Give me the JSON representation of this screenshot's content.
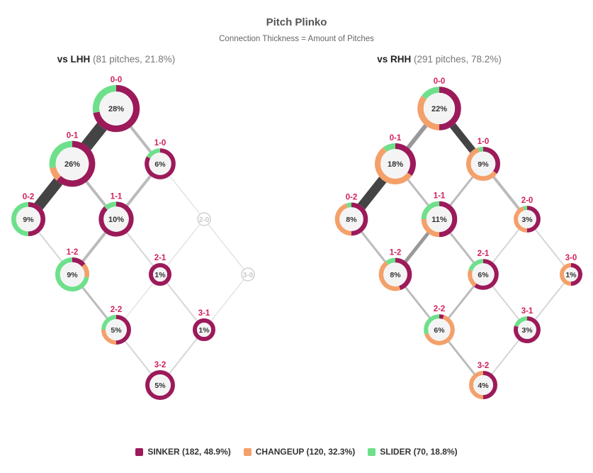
{
  "colors": {
    "sinker": "#9c1a5a",
    "changeup": "#f4a06a",
    "slider": "#6ee08b"
  },
  "chart_data": {
    "type": "count-tree-donut",
    "title": "Pitch Plinko",
    "subtitle": "Connection Thickness = Amount of Pitches",
    "pitch_types": [
      "SINKER",
      "CHANGEUP",
      "SLIDER"
    ],
    "panels": [
      {
        "label": "vs LHH",
        "meta": "(81 pitches, 21.8%)",
        "counts": {
          "0-0": {
            "pct": "28%",
            "mix": [
              0.72,
              0,
              0.28
            ]
          },
          "0-1": {
            "pct": "26%",
            "mix": [
              0.62,
              0.1,
              0.28
            ]
          },
          "1-0": {
            "pct": "6%",
            "mix": [
              0.83,
              0,
              0.17
            ]
          },
          "0-2": {
            "pct": "9%",
            "mix": [
              0.5,
              0,
              0.5
            ]
          },
          "1-1": {
            "pct": "10%",
            "mix": [
              0.88,
              0,
              0.12
            ]
          },
          "2-0": {
            "pct": "",
            "mix": [
              0,
              0,
              0
            ]
          },
          "1-2": {
            "pct": "9%",
            "mix": [
              0.14,
              0.14,
              0.72
            ]
          },
          "2-1": {
            "pct": "1%",
            "mix": [
              1,
              0,
              0
            ]
          },
          "3-0": {
            "pct": "",
            "mix": [
              0,
              0,
              0
            ]
          },
          "2-2": {
            "pct": "5%",
            "mix": [
              0.5,
              0.25,
              0.25
            ]
          },
          "3-1": {
            "pct": "1%",
            "mix": [
              1,
              0,
              0
            ]
          },
          "3-2": {
            "pct": "5%",
            "mix": [
              1,
              0,
              0
            ]
          }
        },
        "edges": [
          {
            "from": "0-0",
            "to": "0-1",
            "w": 17
          },
          {
            "from": "0-0",
            "to": "1-0",
            "w": 4
          },
          {
            "from": "0-1",
            "to": "0-2",
            "w": 15
          },
          {
            "from": "0-1",
            "to": "1-1",
            "w": 4
          },
          {
            "from": "1-0",
            "to": "1-1",
            "w": 4
          },
          {
            "from": "1-0",
            "to": "2-0",
            "w": 1
          },
          {
            "from": "0-2",
            "to": "1-2",
            "w": 2
          },
          {
            "from": "1-1",
            "to": "1-2",
            "w": 4
          },
          {
            "from": "1-1",
            "to": "2-1",
            "w": 2
          },
          {
            "from": "2-0",
            "to": "2-1",
            "w": 1
          },
          {
            "from": "2-0",
            "to": "3-0",
            "w": 1
          },
          {
            "from": "1-2",
            "to": "2-2",
            "w": 3
          },
          {
            "from": "2-1",
            "to": "2-2",
            "w": 1
          },
          {
            "from": "2-1",
            "to": "3-1",
            "w": 2
          },
          {
            "from": "3-0",
            "to": "3-1",
            "w": 1
          },
          {
            "from": "2-2",
            "to": "3-2",
            "w": 2
          },
          {
            "from": "3-1",
            "to": "3-2",
            "w": 2
          }
        ]
      },
      {
        "label": "vs RHH",
        "meta": "(291 pitches, 78.2%)",
        "counts": {
          "0-0": {
            "pct": "22%",
            "mix": [
              0.5,
              0.35,
              0.15
            ]
          },
          "0-1": {
            "pct": "18%",
            "mix": [
              0.35,
              0.55,
              0.1
            ]
          },
          "1-0": {
            "pct": "9%",
            "mix": [
              0.35,
              0.6,
              0.05
            ]
          },
          "0-2": {
            "pct": "8%",
            "mix": [
              0.5,
              0.45,
              0.05
            ]
          },
          "1-1": {
            "pct": "11%",
            "mix": [
              0.5,
              0.25,
              0.25
            ]
          },
          "2-0": {
            "pct": "3%",
            "mix": [
              0.5,
              0.45,
              0.05
            ]
          },
          "1-2": {
            "pct": "8%",
            "mix": [
              0.45,
              0.45,
              0.1
            ]
          },
          "2-1": {
            "pct": "6%",
            "mix": [
              0.6,
              0.2,
              0.2
            ]
          },
          "3-0": {
            "pct": "1%",
            "mix": [
              0.5,
              0.5,
              0
            ]
          },
          "2-2": {
            "pct": "6%",
            "mix": [
              0.05,
              0.65,
              0.3
            ]
          },
          "3-1": {
            "pct": "3%",
            "mix": [
              0.8,
              0,
              0.2
            ]
          },
          "3-2": {
            "pct": "4%",
            "mix": [
              0.5,
              0.5,
              0
            ]
          }
        },
        "edges": [
          {
            "from": "0-0",
            "to": "0-1",
            "w": 6
          },
          {
            "from": "0-0",
            "to": "1-0",
            "w": 10
          },
          {
            "from": "0-1",
            "to": "0-2",
            "w": 13
          },
          {
            "from": "0-1",
            "to": "1-1",
            "w": 3
          },
          {
            "from": "1-0",
            "to": "1-1",
            "w": 3
          },
          {
            "from": "1-0",
            "to": "2-0",
            "w": 4
          },
          {
            "from": "0-2",
            "to": "1-2",
            "w": 3
          },
          {
            "from": "1-1",
            "to": "1-2",
            "w": 5
          },
          {
            "from": "1-1",
            "to": "2-1",
            "w": 3
          },
          {
            "from": "2-0",
            "to": "2-1",
            "w": 2
          },
          {
            "from": "2-0",
            "to": "3-0",
            "w": 2
          },
          {
            "from": "1-2",
            "to": "2-2",
            "w": 3
          },
          {
            "from": "2-1",
            "to": "2-2",
            "w": 3
          },
          {
            "from": "2-1",
            "to": "3-1",
            "w": 2
          },
          {
            "from": "3-0",
            "to": "3-1",
            "w": 2
          },
          {
            "from": "2-2",
            "to": "3-2",
            "w": 3
          },
          {
            "from": "3-1",
            "to": "3-2",
            "w": 2
          }
        ]
      }
    ],
    "legend": [
      {
        "key": "sinker",
        "label": "SINKER (182, 48.9%)"
      },
      {
        "key": "changeup",
        "label": "CHANGEUP (120, 32.3%)"
      },
      {
        "key": "slider",
        "label": "SLIDER (70, 18.8%)"
      }
    ]
  }
}
